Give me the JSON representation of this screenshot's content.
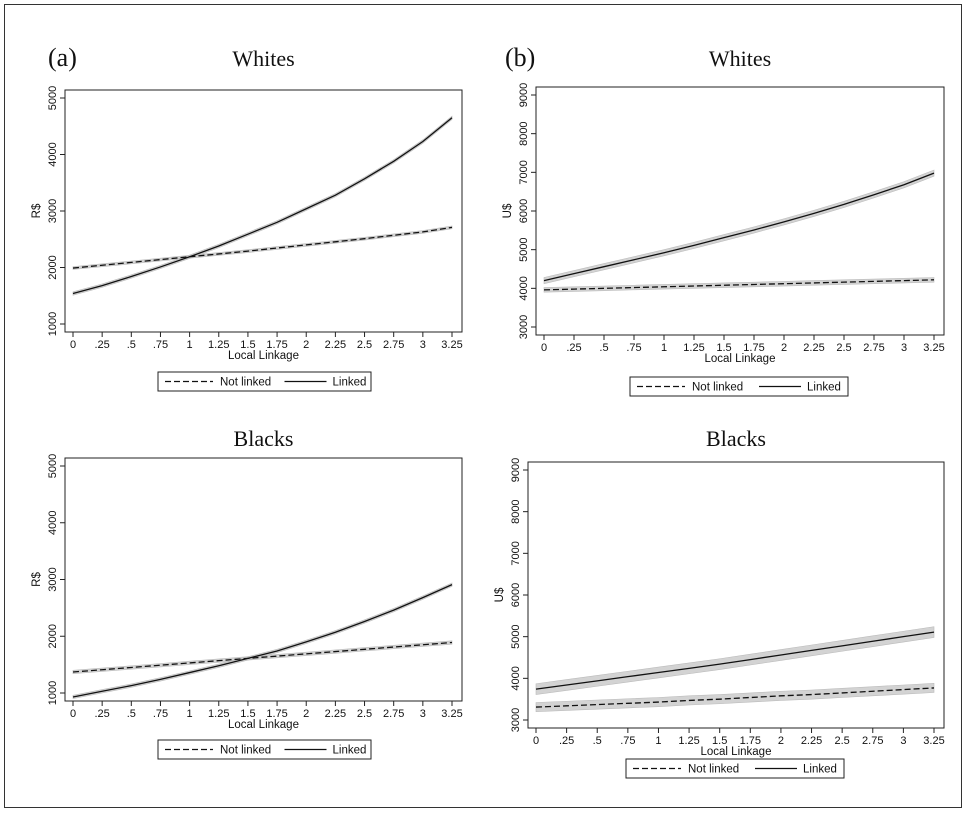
{
  "panel_labels": [
    "(a)",
    "(b)"
  ],
  "legend_labels": {
    "not_linked": "Not linked",
    "linked": "Linked"
  },
  "chart_data": [
    {
      "type": "line",
      "panel": "(a)",
      "title": "Whites",
      "xlabel": "Local Linkage",
      "ylabel": "R$",
      "xlim": [
        0,
        3.25
      ],
      "ylim": [
        1000,
        5000
      ],
      "xticks": [
        "0",
        ".25",
        ".5",
        ".75",
        "1",
        "1.25",
        "1.5",
        "1.75",
        "2",
        "2.25",
        "2.5",
        "2.75",
        "3",
        "3.25"
      ],
      "yticks": [
        "1000",
        "2000",
        "3000",
        "4000",
        "5000"
      ],
      "x": [
        0,
        0.25,
        0.5,
        0.75,
        1,
        1.25,
        1.5,
        1.75,
        2,
        2.25,
        2.5,
        2.75,
        3,
        3.25
      ],
      "series": [
        {
          "name": "Not linked",
          "style": "dashed",
          "values": [
            1990,
            2040,
            2090,
            2140,
            2190,
            2240,
            2290,
            2345,
            2400,
            2455,
            2510,
            2570,
            2630,
            2710
          ],
          "ci_halfwidth": 25
        },
        {
          "name": "Linked",
          "style": "solid",
          "values": [
            1540,
            1680,
            1840,
            2010,
            2190,
            2380,
            2590,
            2800,
            3040,
            3280,
            3570,
            3880,
            4230,
            4650
          ],
          "ci_halfwidth": 30
        }
      ],
      "legend_position": "bottom",
      "grid": false
    },
    {
      "type": "line",
      "panel": "(b)",
      "title": "Whites",
      "xlabel": "Local Linkage",
      "ylabel": "U$",
      "xlim": [
        0,
        3.25
      ],
      "ylim": [
        3000,
        9000
      ],
      "xticks": [
        "0",
        ".25",
        ".5",
        ".75",
        "1",
        "1.25",
        "1.5",
        "1.75",
        "2",
        "2.25",
        "2.5",
        "2.75",
        "3",
        "3.25"
      ],
      "yticks": [
        "3000",
        "4000",
        "5000",
        "6000",
        "7000",
        "8000",
        "9000"
      ],
      "x": [
        0,
        0.25,
        0.5,
        0.75,
        1,
        1.25,
        1.5,
        1.75,
        2,
        2.25,
        2.5,
        2.75,
        3,
        3.25
      ],
      "series": [
        {
          "name": "Not linked",
          "style": "dashed",
          "values": [
            3960,
            3980,
            4000,
            4020,
            4040,
            4060,
            4080,
            4100,
            4120,
            4140,
            4160,
            4180,
            4200,
            4220
          ],
          "ci_halfwidth": 60
        },
        {
          "name": "Linked",
          "style": "solid",
          "values": [
            4200,
            4380,
            4560,
            4740,
            4920,
            5110,
            5310,
            5510,
            5720,
            5940,
            6170,
            6420,
            6680,
            6980
          ],
          "ci_halfwidth": 80
        }
      ],
      "legend_position": "bottom",
      "grid": false
    },
    {
      "type": "line",
      "panel": "(a)",
      "title": "Blacks",
      "xlabel": "Local Linkage",
      "ylabel": "R$",
      "xlim": [
        0,
        3.25
      ],
      "ylim": [
        1000,
        5000
      ],
      "xticks": [
        "0",
        ".25",
        ".5",
        ".75",
        "1",
        "1.25",
        "1.5",
        "1.75",
        "2",
        "2.25",
        "2.5",
        "2.75",
        "3",
        "3.25"
      ],
      "yticks": [
        "1000",
        "2000",
        "3000",
        "4000",
        "5000"
      ],
      "x": [
        0,
        0.25,
        0.5,
        0.75,
        1,
        1.25,
        1.5,
        1.75,
        2,
        2.25,
        2.5,
        2.75,
        3,
        3.25
      ],
      "series": [
        {
          "name": "Not linked",
          "style": "dashed",
          "values": [
            1370,
            1410,
            1450,
            1490,
            1530,
            1570,
            1610,
            1650,
            1690,
            1730,
            1770,
            1810,
            1850,
            1890
          ],
          "ci_halfwidth": 30
        },
        {
          "name": "Linked",
          "style": "solid",
          "values": [
            930,
            1030,
            1130,
            1240,
            1360,
            1480,
            1610,
            1740,
            1900,
            2070,
            2260,
            2460,
            2680,
            2910
          ],
          "ci_halfwidth": 30
        }
      ],
      "legend_position": "bottom",
      "grid": false
    },
    {
      "type": "line",
      "panel": "(b)",
      "title": "Blacks",
      "xlabel": "Local Linkage",
      "ylabel": "U$",
      "xlim": [
        0,
        3.25
      ],
      "ylim": [
        3000,
        9000
      ],
      "xticks": [
        "0",
        ".25",
        ".5",
        ".75",
        "1",
        "1.25",
        "1.5",
        "1.75",
        "2",
        "2.25",
        "2.5",
        "2.75",
        "3",
        "3.25"
      ],
      "yticks": [
        "3000",
        "4000",
        "5000",
        "6000",
        "7000",
        "8000",
        "9000"
      ],
      "x": [
        0,
        0.25,
        0.5,
        0.75,
        1,
        1.25,
        1.5,
        1.75,
        2,
        2.25,
        2.5,
        2.75,
        3,
        3.25
      ],
      "series": [
        {
          "name": "Not linked",
          "style": "dashed",
          "values": [
            3310,
            3340,
            3370,
            3400,
            3430,
            3470,
            3500,
            3540,
            3580,
            3610,
            3650,
            3690,
            3730,
            3770
          ],
          "ci_halfwidth": 110
        },
        {
          "name": "Linked",
          "style": "solid",
          "values": [
            3740,
            3840,
            3940,
            4040,
            4140,
            4240,
            4340,
            4450,
            4560,
            4670,
            4780,
            4890,
            5000,
            5110
          ],
          "ci_halfwidth": 130
        }
      ],
      "legend_position": "bottom",
      "grid": false
    }
  ]
}
